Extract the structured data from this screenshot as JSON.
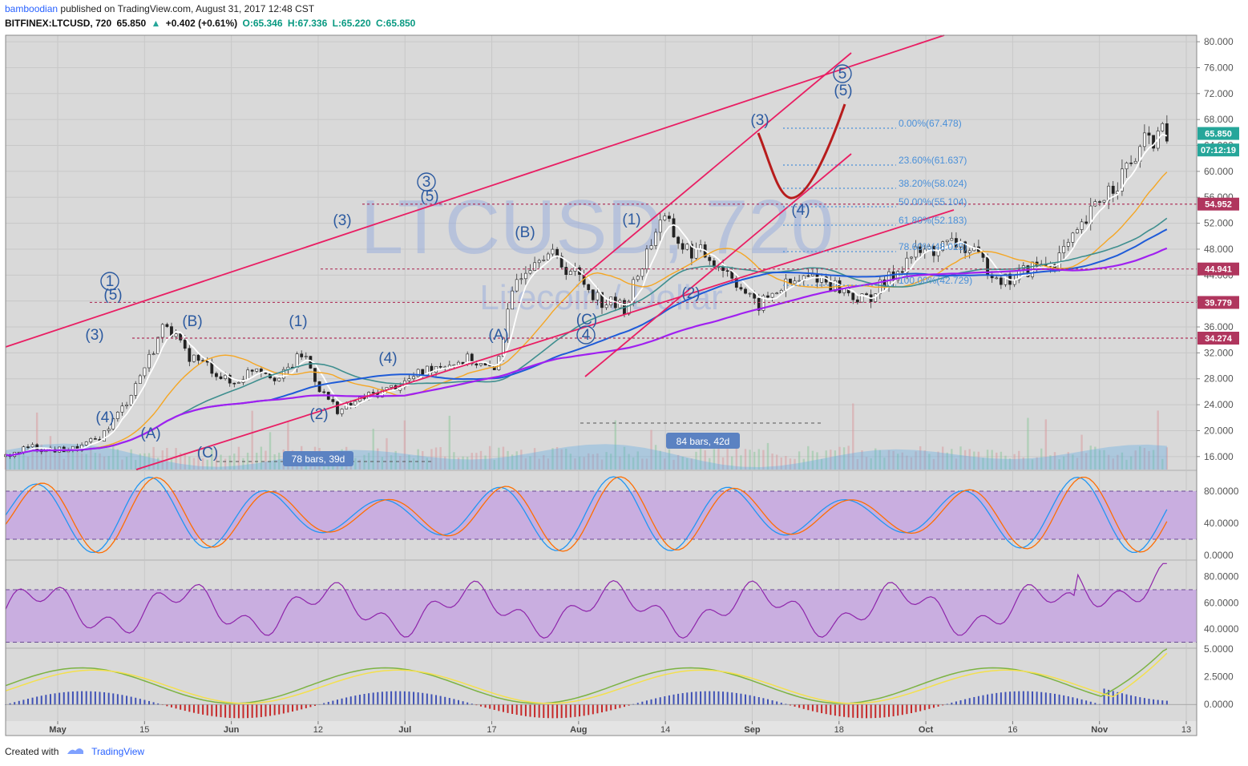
{
  "header": {
    "author": "bamboodian",
    "published": "published on TradingView.com, August 31, 2017 12:48 CST",
    "symbol": "BITFINEX:LTCUSD, 720",
    "last": "65.850",
    "change": "+0.402 (+0.61%)",
    "open": "O:65.346",
    "high": "H:67.336",
    "low": "L:65.220",
    "close": "C:65.850"
  },
  "watermark": {
    "main": "LTCUSD, 720",
    "sub": "Litecoin / Dollar"
  },
  "colors": {
    "pink": "#e91e63",
    "navy": "#2c5aa0",
    "purple_band": "#c9aee0",
    "fib": "#4a90d9",
    "dark_red": "#b71c1c"
  },
  "chart_data": [
    {
      "type": "candlestick",
      "title": "BITFINEX:LTCUSD, 720",
      "x_ticks": [
        "May",
        "15",
        "Jun",
        "12",
        "Jul",
        "17",
        "Aug",
        "14",
        "Sep",
        "18",
        "Oct",
        "16",
        "Nov",
        "13"
      ],
      "y_ticks": [
        "80.000",
        "76.000",
        "72.000",
        "68.000",
        "64.000",
        "60.000",
        "56.000",
        "52.000",
        "48.000",
        "44.000",
        "40.000",
        "36.000",
        "32.000",
        "28.000",
        "24.000",
        "20.000",
        "16.000"
      ],
      "ylim": [
        14,
        81
      ],
      "price_labels": [
        {
          "value": 65.85,
          "label": "65.850",
          "color": "#26a69a"
        },
        {
          "value": 63.3,
          "label": "07:12:19",
          "color": "#26a69a"
        },
        {
          "value": 54.952,
          "label": "54.952",
          "color": "#b0365e"
        },
        {
          "value": 44.941,
          "label": "44.941",
          "color": "#b0365e"
        },
        {
          "value": 39.779,
          "label": "39.779",
          "color": "#b0365e"
        },
        {
          "value": 34.274,
          "label": "34.274",
          "color": "#b0365e"
        }
      ],
      "close_path": [
        [
          0,
          16
        ],
        [
          0.02,
          17.5
        ],
        [
          0.04,
          17
        ],
        [
          0.06,
          17.2
        ],
        [
          0.08,
          19
        ],
        [
          0.1,
          24
        ],
        [
          0.12,
          31
        ],
        [
          0.135,
          37
        ],
        [
          0.15,
          32
        ],
        [
          0.17,
          30
        ],
        [
          0.19,
          27
        ],
        [
          0.21,
          30
        ],
        [
          0.23,
          28
        ],
        [
          0.25,
          32
        ],
        [
          0.265,
          26
        ],
        [
          0.28,
          23
        ],
        [
          0.3,
          25
        ],
        [
          0.33,
          27
        ],
        [
          0.36,
          30
        ],
        [
          0.39,
          31
        ],
        [
          0.41,
          29
        ],
        [
          0.43,
          44
        ],
        [
          0.45,
          48
        ],
        [
          0.48,
          44
        ],
        [
          0.5,
          40
        ],
        [
          0.52,
          39
        ],
        [
          0.55,
          53
        ],
        [
          0.57,
          48
        ],
        [
          0.59,
          47
        ],
        [
          0.61,
          44
        ],
        [
          0.63,
          39
        ],
        [
          0.65,
          42
        ],
        [
          0.68,
          44
        ],
        [
          0.7,
          42
        ],
        [
          0.72,
          40
        ],
        [
          0.74,
          43
        ],
        [
          0.76,
          47
        ],
        [
          0.78,
          48
        ],
        [
          0.8,
          49
        ],
        [
          0.82,
          46
        ],
        [
          0.84,
          43
        ],
        [
          0.86,
          45
        ],
        [
          0.88,
          46
        ],
        [
          0.9,
          50
        ],
        [
          0.92,
          56
        ],
        [
          0.94,
          60
        ],
        [
          0.96,
          65
        ],
        [
          0.975,
          65.85
        ]
      ],
      "annotations": {
        "fib_levels": [
          "0.00%(67.478)",
          "23.60%(61.637)",
          "38.20%(58.024)",
          "50.00%(55.104)",
          "61.80%(52.183)",
          "78.60%(48.025)",
          "100.00%(42.729)"
        ],
        "waves": [
          "1",
          "(5)",
          "(3)",
          "(4)",
          "(A)",
          "(B)",
          "(C)",
          "(1)",
          "(2)",
          "(3)",
          "3",
          "(5)",
          "(4)",
          "(A)",
          "(B)",
          "4",
          "(C)",
          "(1)",
          "(2)",
          "(3)",
          "(4)",
          "5",
          "(5)"
        ],
        "range_labels": [
          "78 bars, 39d",
          "84 bars, 42d"
        ]
      }
    },
    {
      "type": "line",
      "title": "",
      "y_ticks": [
        "80.0000",
        "40.0000",
        "0.0000"
      ],
      "ylim": [
        -5,
        105
      ],
      "band": [
        20,
        80
      ]
    },
    {
      "type": "line",
      "title": "",
      "y_ticks": [
        "80.0000",
        "60.0000",
        "40.0000"
      ],
      "ylim": [
        26,
        92
      ],
      "band": [
        30,
        70
      ]
    },
    {
      "type": "line",
      "title": "",
      "y_ticks": [
        "5.0000",
        "2.5000",
        "0.0000"
      ],
      "ylim": [
        -1.5,
        5
      ]
    }
  ],
  "footer": {
    "created_with": "Created with",
    "brand": "TradingView"
  }
}
